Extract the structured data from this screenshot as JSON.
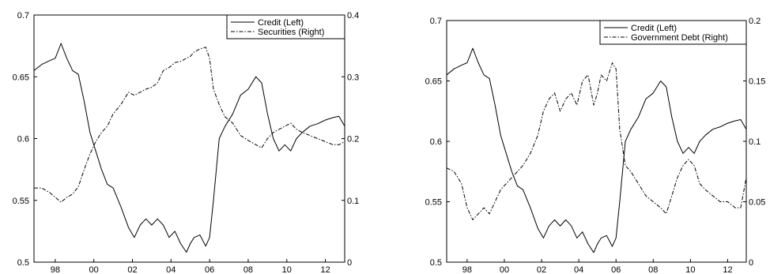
{
  "chart_data": [
    {
      "type": "line",
      "title": "",
      "xlabel": "",
      "ylabel": "",
      "x_ticks": [
        "98",
        "00",
        "02",
        "04",
        "06",
        "08",
        "10",
        "12"
      ],
      "xlim": [
        1996.9,
        2013.0
      ],
      "ylim_left": [
        0.5,
        0.7
      ],
      "yticks_left": [
        "0.5",
        "0.55",
        "0.6",
        "0.65",
        "0.7"
      ],
      "ylim_right": [
        0,
        0.4
      ],
      "yticks_right": [
        "0",
        "0.1",
        "0.2",
        "0.3",
        "0.4"
      ],
      "grid": false,
      "legend_position": "top-right",
      "series": [
        {
          "name": "Credit  (Left)",
          "axis": "left",
          "style": "solid",
          "color": "#000000",
          "x": [
            1996.9,
            1997.3,
            1997.7,
            1998.0,
            1998.3,
            1998.6,
            1998.9,
            1999.2,
            1999.5,
            1999.8,
            2000.1,
            2000.4,
            2000.7,
            2001.0,
            2001.4,
            2001.8,
            2002.1,
            2002.4,
            2002.7,
            2003.0,
            2003.3,
            2003.6,
            2003.9,
            2004.2,
            2004.5,
            2004.8,
            2005.0,
            2005.2,
            2005.5,
            2005.8,
            2006.0,
            2006.2,
            2006.5,
            2006.8,
            2007.2,
            2007.6,
            2008.0,
            2008.4,
            2008.7,
            2009.0,
            2009.3,
            2009.6,
            2009.9,
            2010.2,
            2010.5,
            2010.8,
            2011.2,
            2011.6,
            2012.0,
            2012.4,
            2012.7,
            2013.0
          ],
          "values": [
            0.655,
            0.66,
            0.663,
            0.665,
            0.677,
            0.665,
            0.655,
            0.652,
            0.63,
            0.605,
            0.59,
            0.575,
            0.563,
            0.56,
            0.545,
            0.528,
            0.52,
            0.53,
            0.535,
            0.53,
            0.535,
            0.53,
            0.52,
            0.525,
            0.515,
            0.508,
            0.515,
            0.52,
            0.522,
            0.513,
            0.52,
            0.55,
            0.6,
            0.61,
            0.62,
            0.635,
            0.64,
            0.65,
            0.645,
            0.62,
            0.6,
            0.59,
            0.595,
            0.59,
            0.6,
            0.605,
            0.61,
            0.612,
            0.615,
            0.617,
            0.618,
            0.61
          ]
        },
        {
          "name": "Securities  (Right)",
          "axis": "right",
          "style": "dash-dot",
          "color": "#000000",
          "x": [
            1996.9,
            1997.3,
            1997.7,
            1998.0,
            1998.3,
            1998.6,
            1998.9,
            1999.2,
            1999.5,
            1999.8,
            2000.1,
            2000.4,
            2000.7,
            2001.0,
            2001.4,
            2001.8,
            2002.1,
            2002.4,
            2002.7,
            2003.0,
            2003.3,
            2003.6,
            2003.9,
            2004.2,
            2004.5,
            2004.8,
            2005.0,
            2005.2,
            2005.5,
            2005.8,
            2006.0,
            2006.2,
            2006.5,
            2006.8,
            2007.2,
            2007.6,
            2008.0,
            2008.4,
            2008.7,
            2009.0,
            2009.3,
            2009.6,
            2009.9,
            2010.2,
            2010.5,
            2010.8,
            2011.2,
            2011.6,
            2012.0,
            2012.4,
            2012.7,
            2013.0
          ],
          "values": [
            0.12,
            0.12,
            0.113,
            0.105,
            0.097,
            0.105,
            0.11,
            0.122,
            0.15,
            0.175,
            0.195,
            0.21,
            0.22,
            0.24,
            0.255,
            0.275,
            0.27,
            0.275,
            0.28,
            0.283,
            0.29,
            0.31,
            0.315,
            0.323,
            0.325,
            0.33,
            0.333,
            0.34,
            0.345,
            0.348,
            0.33,
            0.28,
            0.255,
            0.235,
            0.225,
            0.205,
            0.197,
            0.19,
            0.185,
            0.2,
            0.21,
            0.215,
            0.22,
            0.225,
            0.215,
            0.21,
            0.205,
            0.2,
            0.195,
            0.19,
            0.19,
            0.195
          ]
        }
      ]
    },
    {
      "type": "line",
      "title": "",
      "xlabel": "",
      "ylabel": "",
      "x_ticks": [
        "98",
        "00",
        "02",
        "04",
        "06",
        "08",
        "10",
        "12"
      ],
      "xlim": [
        1996.9,
        2013.0
      ],
      "ylim_left": [
        0.5,
        0.7
      ],
      "yticks_left": [
        "0.5",
        "0.55",
        "0.6",
        "0.65",
        "0.7"
      ],
      "ylim_right": [
        0,
        0.2
      ],
      "yticks_right": [
        "0",
        "0.05",
        "0.1",
        "0.15",
        "0.2"
      ],
      "grid": false,
      "legend_position": "top-right",
      "series": [
        {
          "name": "Credit (Left)",
          "axis": "left",
          "style": "solid",
          "color": "#000000",
          "x": [
            1996.9,
            1997.3,
            1997.7,
            1998.0,
            1998.3,
            1998.6,
            1998.9,
            1999.2,
            1999.5,
            1999.8,
            2000.1,
            2000.4,
            2000.7,
            2001.0,
            2001.4,
            2001.8,
            2002.1,
            2002.4,
            2002.7,
            2003.0,
            2003.3,
            2003.6,
            2003.9,
            2004.2,
            2004.5,
            2004.8,
            2005.0,
            2005.2,
            2005.5,
            2005.8,
            2006.0,
            2006.2,
            2006.5,
            2006.8,
            2007.2,
            2007.6,
            2008.0,
            2008.4,
            2008.7,
            2009.0,
            2009.3,
            2009.6,
            2009.9,
            2010.2,
            2010.5,
            2010.8,
            2011.2,
            2011.6,
            2012.0,
            2012.4,
            2012.7,
            2013.0
          ],
          "values": [
            0.655,
            0.66,
            0.663,
            0.665,
            0.677,
            0.665,
            0.655,
            0.652,
            0.63,
            0.605,
            0.59,
            0.575,
            0.563,
            0.56,
            0.545,
            0.528,
            0.52,
            0.53,
            0.535,
            0.53,
            0.535,
            0.53,
            0.52,
            0.525,
            0.515,
            0.508,
            0.515,
            0.52,
            0.522,
            0.513,
            0.52,
            0.55,
            0.6,
            0.61,
            0.62,
            0.635,
            0.64,
            0.65,
            0.645,
            0.62,
            0.6,
            0.59,
            0.595,
            0.59,
            0.6,
            0.605,
            0.61,
            0.612,
            0.615,
            0.617,
            0.618,
            0.61
          ]
        },
        {
          "name": "Government Debt (Right)",
          "axis": "right",
          "style": "dash-dot",
          "color": "#000000",
          "x": [
            1996.9,
            1997.3,
            1997.7,
            1998.0,
            1998.3,
            1998.6,
            1998.9,
            1999.2,
            1999.5,
            1999.8,
            2000.1,
            2000.4,
            2000.7,
            2001.0,
            2001.4,
            2001.8,
            2002.1,
            2002.4,
            2002.7,
            2003.0,
            2003.3,
            2003.6,
            2003.9,
            2004.2,
            2004.5,
            2004.8,
            2005.0,
            2005.2,
            2005.5,
            2005.8,
            2006.0,
            2006.2,
            2006.5,
            2006.8,
            2007.2,
            2007.6,
            2008.0,
            2008.4,
            2008.7,
            2009.0,
            2009.3,
            2009.6,
            2009.9,
            2010.2,
            2010.5,
            2010.8,
            2011.2,
            2011.6,
            2012.0,
            2012.4,
            2012.7,
            2013.0
          ],
          "values": [
            0.078,
            0.075,
            0.065,
            0.045,
            0.035,
            0.04,
            0.045,
            0.04,
            0.05,
            0.06,
            0.065,
            0.07,
            0.075,
            0.08,
            0.09,
            0.105,
            0.125,
            0.135,
            0.14,
            0.125,
            0.135,
            0.14,
            0.13,
            0.15,
            0.155,
            0.13,
            0.14,
            0.155,
            0.15,
            0.165,
            0.16,
            0.11,
            0.08,
            0.075,
            0.065,
            0.055,
            0.05,
            0.045,
            0.04,
            0.055,
            0.07,
            0.08,
            0.085,
            0.08,
            0.065,
            0.06,
            0.055,
            0.05,
            0.05,
            0.045,
            0.045,
            0.07
          ]
        }
      ]
    }
  ]
}
